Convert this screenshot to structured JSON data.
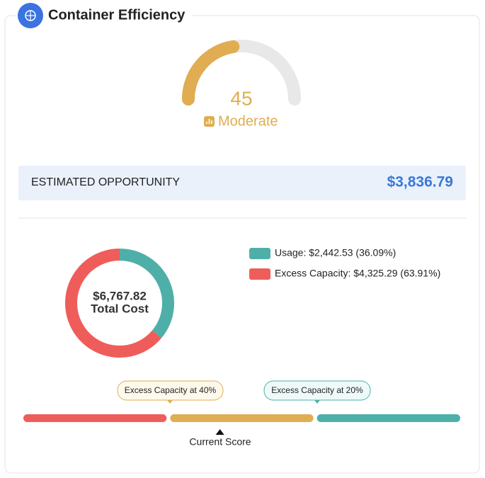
{
  "header": {
    "title": "Container Efficiency"
  },
  "chart_data": [
    {
      "type": "gauge",
      "value": 45,
      "ylim": [
        0,
        100
      ],
      "color": "#e0ad52",
      "track_color": "#e8e8e8",
      "label": "Moderate"
    },
    {
      "type": "donut",
      "series": [
        {
          "name": "Usage: $2,442.53 (36.09%)",
          "color": "#4eafa8",
          "values": [
            2442.53
          ]
        },
        {
          "name": "Excess Capacity: $4,325.29 (63.91%)",
          "color": "#ef5d5a",
          "values": [
            4325.29
          ]
        }
      ],
      "center": {
        "value": "$6,767.82",
        "label": "Total Cost"
      }
    }
  ],
  "opportunity": {
    "label": "ESTIMATED OPPORTUNITY",
    "value": "$3,836.79"
  },
  "scale": {
    "segments": [
      "#ef5d5a",
      "#e0ad52",
      "#4eafa8"
    ],
    "callouts": [
      "Excess Capacity at 40%",
      "Excess Capacity at 20%"
    ],
    "marker": "Current Score"
  }
}
